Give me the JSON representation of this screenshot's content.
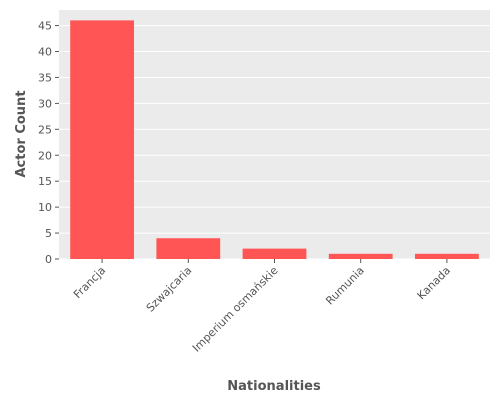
{
  "chart_data": {
    "type": "bar",
    "title": "",
    "xlabel": "Nationalities",
    "ylabel": "Actor Count",
    "categories": [
      "Francja",
      "Szwajcaria",
      "Imperium osmańskie",
      "Rumunia",
      "Kanada"
    ],
    "values": [
      46,
      4,
      2,
      1,
      1
    ],
    "ylim": [
      0,
      48
    ],
    "yticks": [
      0,
      5,
      10,
      15,
      20,
      25,
      30,
      35,
      40,
      45
    ],
    "grid": true,
    "bar_color": "#ff5555",
    "background_color": "#ebebeb"
  }
}
